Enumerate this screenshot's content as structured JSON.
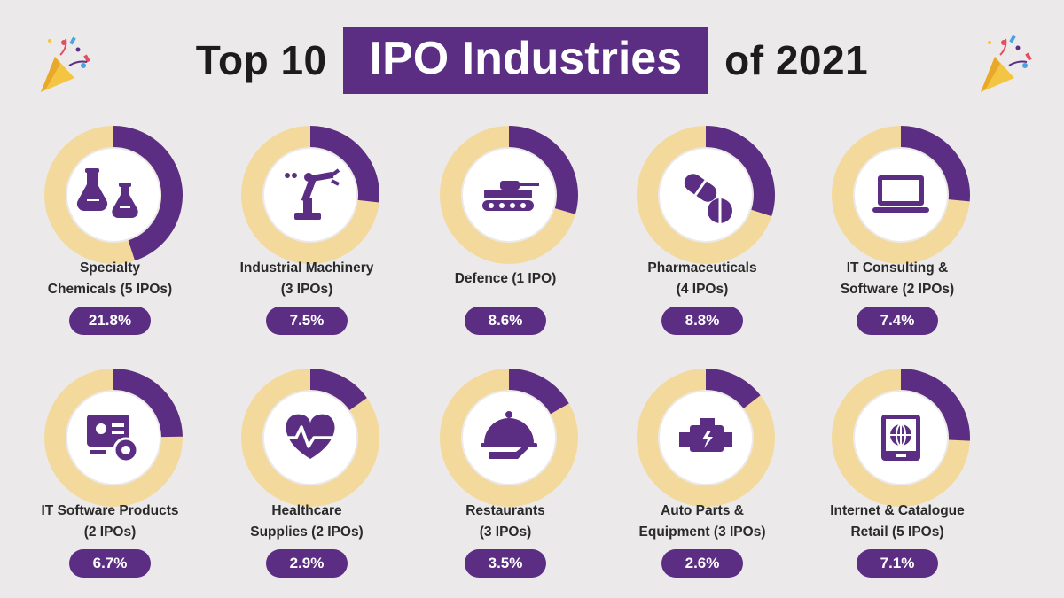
{
  "header": {
    "title_pre": "Top 10",
    "title_highlight": "IPO Industries",
    "title_post": "of 2021"
  },
  "colors": {
    "purple": "#5b2e83",
    "ring": "#f3d99b",
    "background": "#ebe9ea"
  },
  "chart_data": {
    "type": "donut-grid",
    "title": "Top 10 IPO Industries of 2021",
    "unit": "%",
    "items": [
      {
        "line1": "Specialty",
        "line2": "Chemicals (5 IPOs)",
        "value": 21.8,
        "label": "21.8%",
        "icon": "chemistry-flasks-icon"
      },
      {
        "line1": "Industrial Machinery",
        "line2": "(3 IPOs)",
        "value": 7.5,
        "label": "7.5%",
        "icon": "robotic-arm-icon"
      },
      {
        "line1": "Defence (1 IPO)",
        "line2": "",
        "value": 8.6,
        "label": "8.6%",
        "icon": "tank-icon"
      },
      {
        "line1": "Pharmaceuticals",
        "line2": "(4 IPOs)",
        "value": 8.8,
        "label": "8.8%",
        "icon": "pills-icon"
      },
      {
        "line1": "IT Consulting &",
        "line2": "Software (2 IPOs)",
        "value": 7.4,
        "label": "7.4%",
        "icon": "laptop-icon"
      },
      {
        "line1": "IT Software Products",
        "line2": "(2 IPOs)",
        "value": 6.7,
        "label": "6.7%",
        "icon": "software-gear-icon"
      },
      {
        "line1": "Healthcare",
        "line2": "Supplies (2 IPOs)",
        "value": 2.9,
        "label": "2.9%",
        "icon": "heartbeat-icon"
      },
      {
        "line1": "Restaurants",
        "line2": "(3 IPOs)",
        "value": 3.5,
        "label": "3.5%",
        "icon": "cloche-icon"
      },
      {
        "line1": "Auto Parts &",
        "line2": "Equipment (3 IPOs)",
        "value": 2.6,
        "label": "2.6%",
        "icon": "engine-icon"
      },
      {
        "line1": "Internet & Catalogue",
        "line2": "Retail (5 IPOs)",
        "value": 7.1,
        "label": "7.1%",
        "icon": "web-store-icon"
      }
    ]
  }
}
